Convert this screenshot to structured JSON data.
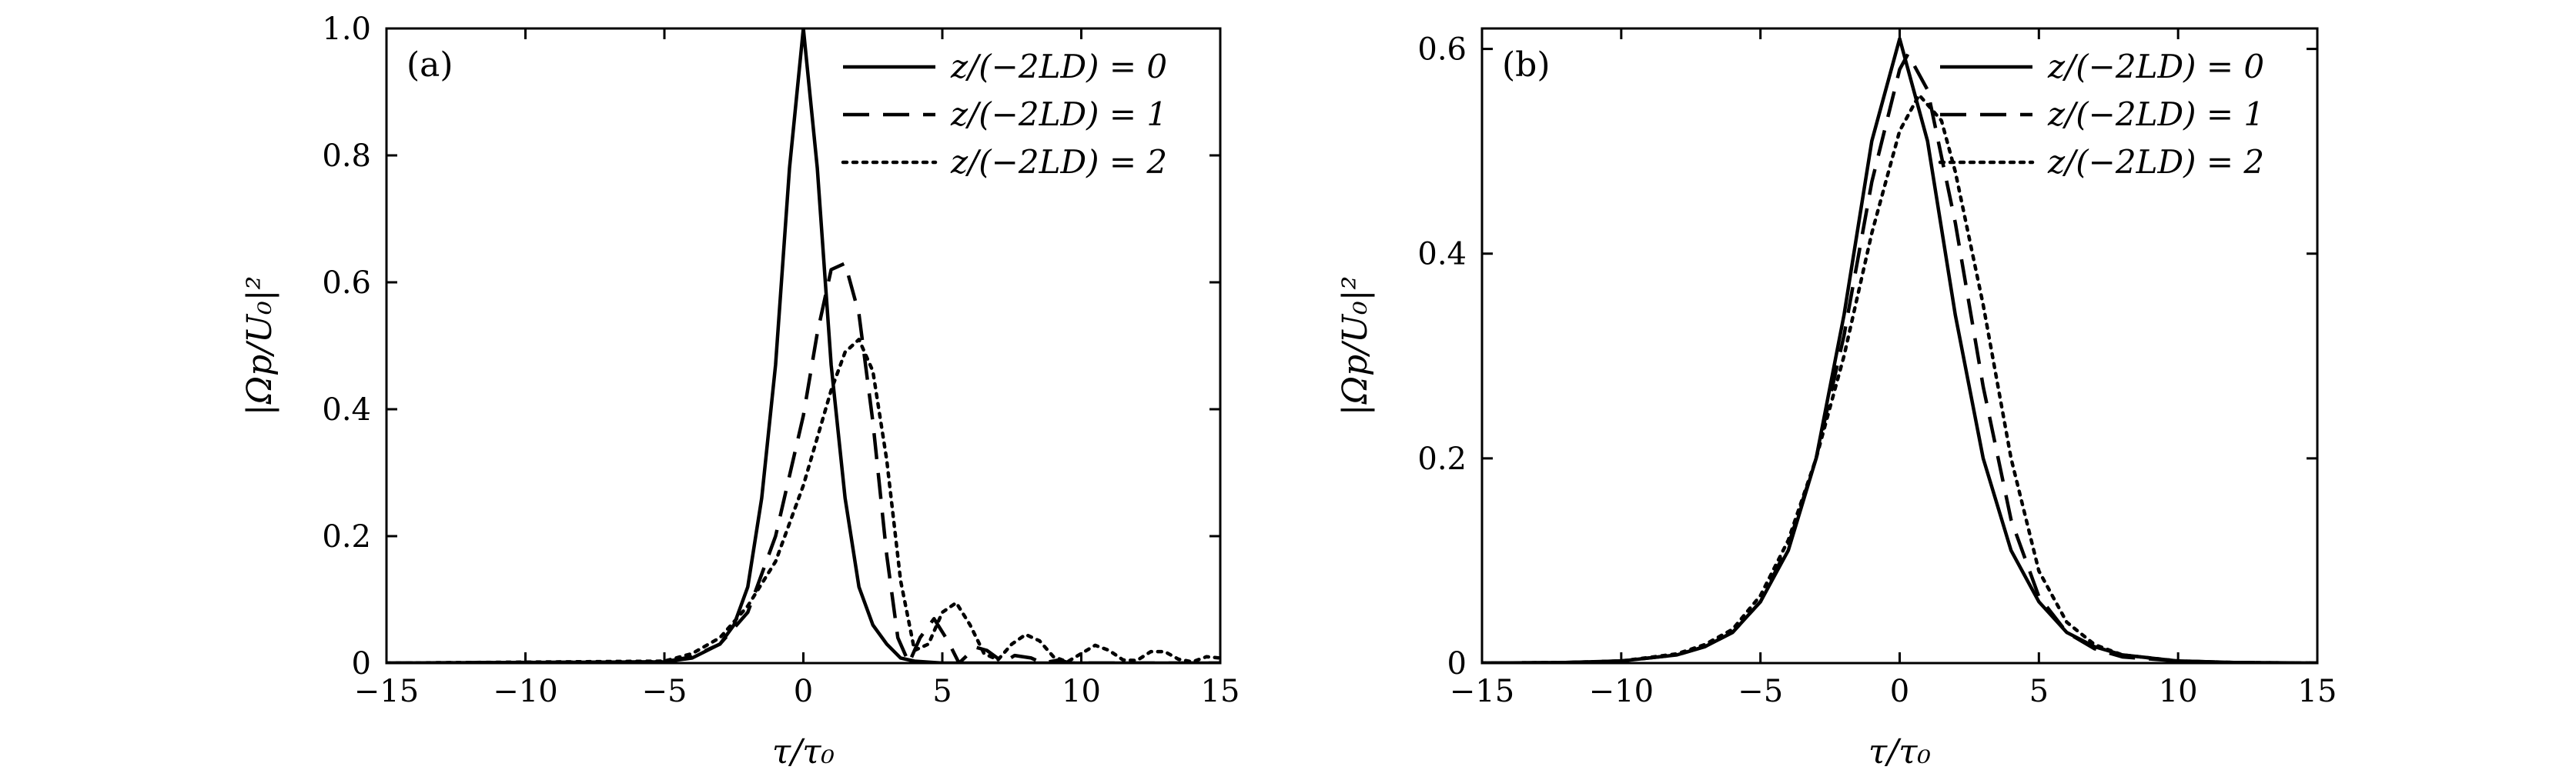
{
  "chart_data": [
    {
      "type": "line",
      "panel_label": "(a)",
      "xlabel": "τ/τ₀",
      "ylabel": "|Ωp/U₀|²",
      "xlim": [
        -15,
        15
      ],
      "ylim": [
        0,
        1.0
      ],
      "xticks": [
        -15,
        -10,
        -5,
        0,
        5,
        10,
        15
      ],
      "xtick_labels": [
        "−15",
        "−10",
        "−5",
        "0",
        "5",
        "10",
        "15"
      ],
      "yticks": [
        0,
        0.2,
        0.4,
        0.6,
        0.8,
        1.0
      ],
      "ytick_labels": [
        "0",
        "0.2",
        "0.4",
        "0.6",
        "0.8",
        "1.0"
      ],
      "grid": false,
      "legend_position": "top-right",
      "series": [
        {
          "name": "z/(−2LD) = 0",
          "style": "solid",
          "x": [
            -15,
            -5,
            -4,
            -3,
            -2.5,
            -2,
            -1.5,
            -1,
            -0.5,
            0,
            0.5,
            1,
            1.5,
            2,
            2.5,
            3,
            3.5,
            4,
            5,
            15
          ],
          "y": [
            0,
            0.002,
            0.008,
            0.03,
            0.06,
            0.12,
            0.26,
            0.47,
            0.78,
            1.0,
            0.78,
            0.47,
            0.26,
            0.12,
            0.06,
            0.03,
            0.008,
            0.003,
            0,
            0
          ]
        },
        {
          "name": "z/(−2LD) = 1",
          "style": "dashed",
          "x": [
            -15,
            -5,
            -4,
            -3,
            -2,
            -1,
            0,
            0.5,
            1,
            1.5,
            2,
            2.5,
            3,
            3.4,
            3.8,
            4.2,
            4.7,
            5.2,
            5.6,
            6.2,
            6.6,
            7.2,
            7.6,
            8.2,
            8.6,
            9.2,
            9.6,
            15
          ],
          "y": [
            0,
            0.002,
            0.01,
            0.03,
            0.08,
            0.2,
            0.39,
            0.52,
            0.62,
            0.63,
            0.55,
            0.38,
            0.17,
            0.04,
            0,
            0.04,
            0.07,
            0.035,
            0,
            0.025,
            0.02,
            0.001,
            0.012,
            0.008,
            0,
            0.005,
            0,
            0
          ]
        },
        {
          "name": "z/(−2LD) = 2",
          "style": "dotted",
          "x": [
            -15,
            -5,
            -4,
            -3,
            -2,
            -1,
            0,
            1,
            1.5,
            2,
            2.5,
            3,
            3.5,
            4,
            4.5,
            5,
            5.5,
            6,
            6.5,
            7,
            7.5,
            8,
            8.5,
            9,
            9.5,
            10,
            10.5,
            11,
            11.5,
            12,
            12.5,
            13,
            13.5,
            14,
            14.5,
            15
          ],
          "y": [
            0,
            0.003,
            0.015,
            0.04,
            0.09,
            0.16,
            0.28,
            0.43,
            0.49,
            0.51,
            0.46,
            0.32,
            0.13,
            0.02,
            0.03,
            0.08,
            0.095,
            0.06,
            0.015,
            0.005,
            0.03,
            0.045,
            0.035,
            0.01,
            0.002,
            0.015,
            0.028,
            0.02,
            0.005,
            0.004,
            0.018,
            0.018,
            0.006,
            0.002,
            0.01,
            0.008
          ]
        }
      ]
    },
    {
      "type": "line",
      "panel_label": "(b)",
      "xlabel": "τ/τ₀",
      "ylabel": "|Ωp/U₀|²",
      "xlim": [
        -15,
        15
      ],
      "ylim": [
        0,
        0.62
      ],
      "xticks": [
        -15,
        -10,
        -5,
        0,
        5,
        10,
        15
      ],
      "xtick_labels": [
        "−15",
        "−10",
        "−5",
        "0",
        "5",
        "10",
        "15"
      ],
      "yticks": [
        0,
        0.2,
        0.4,
        0.6
      ],
      "ytick_labels": [
        "0",
        "0.2",
        "0.4",
        "0.6"
      ],
      "grid": false,
      "legend_position": "top-right",
      "series": [
        {
          "name": "z/(−2LD) = 0",
          "style": "solid",
          "x": [
            -15,
            -12,
            -10,
            -8,
            -7,
            -6,
            -5,
            -4,
            -3,
            -2,
            -1,
            0,
            1,
            2,
            3,
            4,
            5,
            6,
            7,
            8,
            10,
            12,
            15
          ],
          "y": [
            0,
            0.0005,
            0.002,
            0.008,
            0.016,
            0.03,
            0.06,
            0.11,
            0.2,
            0.34,
            0.51,
            0.61,
            0.51,
            0.34,
            0.2,
            0.11,
            0.06,
            0.03,
            0.016,
            0.008,
            0.002,
            0.0005,
            0
          ]
        },
        {
          "name": "z/(−2LD) = 1",
          "style": "dashed",
          "x": [
            -15,
            -12,
            -10,
            -8,
            -7,
            -6,
            -5,
            -4,
            -3,
            -2,
            -1,
            0,
            0.3,
            1,
            2,
            3,
            4,
            5,
            6,
            7,
            8,
            10,
            12,
            15
          ],
          "y": [
            0,
            0.0005,
            0.002,
            0.008,
            0.016,
            0.03,
            0.06,
            0.115,
            0.2,
            0.32,
            0.47,
            0.58,
            0.595,
            0.56,
            0.43,
            0.27,
            0.14,
            0.065,
            0.03,
            0.014,
            0.006,
            0.002,
            0.0005,
            0
          ]
        },
        {
          "name": "z/(−2LD) = 2",
          "style": "dotted",
          "x": [
            -15,
            -12,
            -10,
            -8,
            -7,
            -6,
            -5,
            -4,
            -3,
            -2,
            -1,
            0,
            0.7,
            1.5,
            2,
            3,
            4,
            5,
            6,
            7,
            8,
            10,
            12,
            15
          ],
          "y": [
            0,
            0.0005,
            0.002,
            0.009,
            0.018,
            0.033,
            0.066,
            0.12,
            0.2,
            0.3,
            0.42,
            0.52,
            0.555,
            0.53,
            0.48,
            0.35,
            0.2,
            0.09,
            0.04,
            0.018,
            0.008,
            0.002,
            0.0005,
            0
          ]
        }
      ]
    }
  ]
}
